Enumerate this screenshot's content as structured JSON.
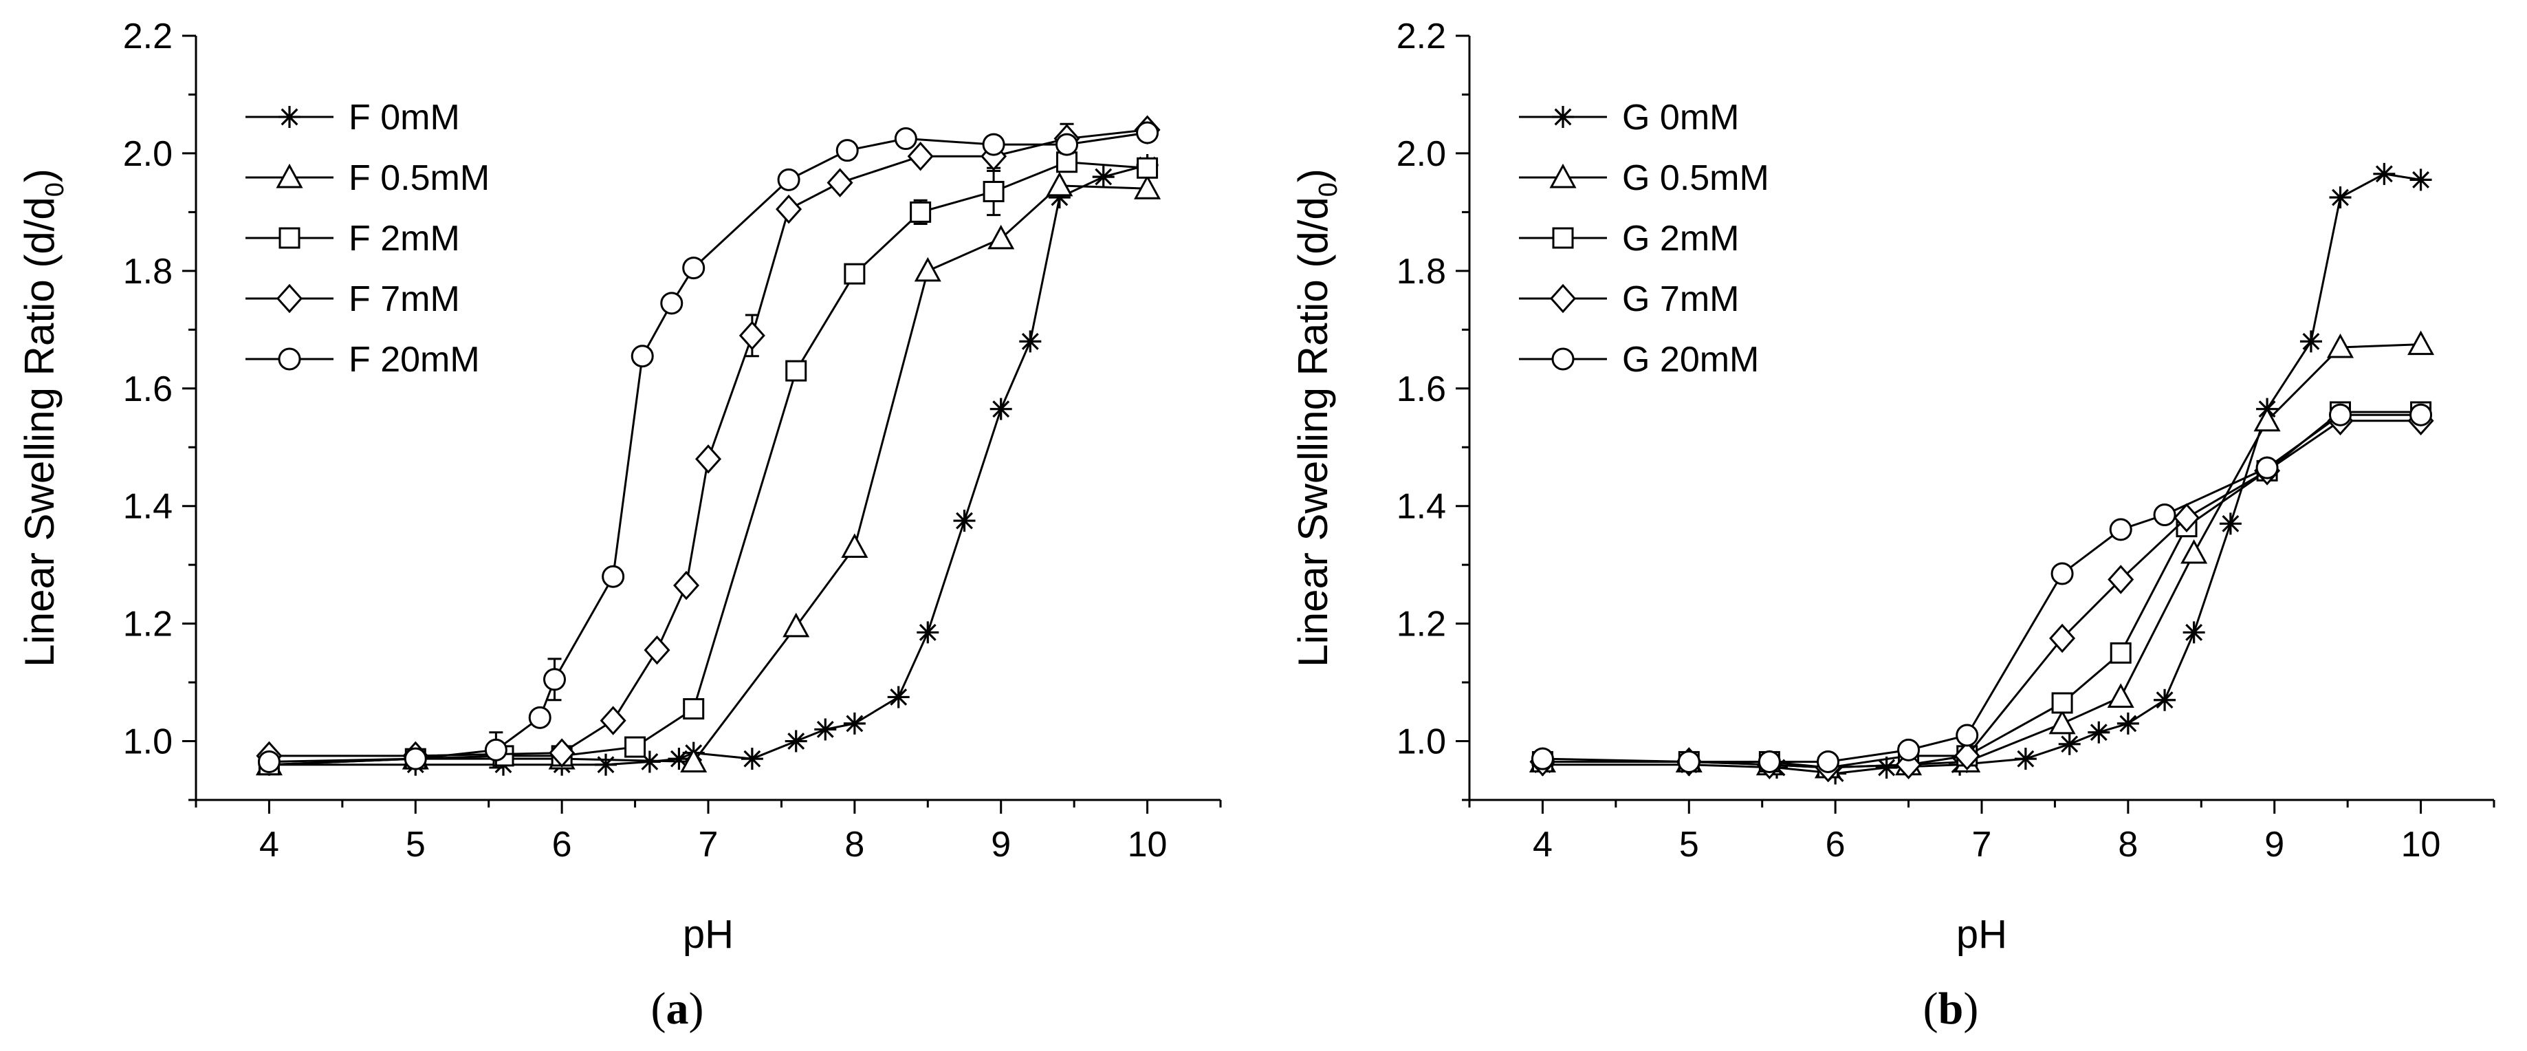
{
  "figure": {
    "colors": {
      "line": "#000000",
      "background": "#ffffff"
    }
  },
  "chart_data": [
    {
      "type": "line",
      "panel_label": "a",
      "xlabel": "pH",
      "ylabel": "Linear Swelling Ratio (d/d",
      "ylabel_sub": "0",
      "ylabel_suffix": ")",
      "xlim": [
        3.5,
        10.5
      ],
      "ylim": [
        0.9,
        2.2
      ],
      "xticks": [
        "4",
        "5",
        "6",
        "7",
        "8",
        "9",
        "10"
      ],
      "yticks": [
        "1.0",
        "1.2",
        "1.4",
        "1.6",
        "1.8",
        "2.0",
        "2.2"
      ],
      "legend_position": "top-left",
      "series": [
        {
          "name": "F 0mM",
          "marker": "star",
          "x": [
            4.0,
            5.0,
            5.6,
            6.0,
            6.3,
            6.6,
            6.8,
            6.9,
            7.3,
            7.6,
            7.8,
            8.0,
            8.3,
            8.5,
            8.75,
            9.0,
            9.2,
            9.4,
            9.7,
            10.0
          ],
          "y": [
            0.96,
            0.96,
            0.96,
            0.96,
            0.96,
            0.965,
            0.97,
            0.98,
            0.97,
            1.0,
            1.02,
            1.03,
            1.075,
            1.185,
            1.375,
            1.565,
            1.68,
            1.925,
            1.96,
            1.98
          ],
          "err": [
            0,
            0,
            0,
            0,
            0,
            0,
            0,
            0,
            0,
            0,
            0,
            0,
            0,
            0,
            0,
            0,
            0,
            0,
            0,
            0
          ]
        },
        {
          "name": "F 0.5mM",
          "marker": "triangle",
          "x": [
            4.0,
            5.0,
            6.0,
            6.9,
            7.6,
            8.0,
            8.5,
            9.0,
            9.4,
            10.0
          ],
          "y": [
            0.96,
            0.97,
            0.97,
            0.965,
            1.195,
            1.33,
            1.8,
            1.855,
            1.945,
            1.94
          ],
          "err": [
            0,
            0,
            0,
            0,
            0,
            0,
            0,
            0,
            0,
            0
          ]
        },
        {
          "name": "F 2mM",
          "marker": "square",
          "x": [
            4.0,
            5.0,
            5.6,
            6.0,
            6.5,
            6.9,
            7.6,
            8.0,
            8.45,
            8.95,
            9.45,
            10.0
          ],
          "y": [
            0.96,
            0.97,
            0.975,
            0.975,
            0.99,
            1.055,
            1.63,
            1.795,
            1.9,
            1.935,
            1.985,
            1.975
          ],
          "err": [
            0,
            0,
            0,
            0,
            0,
            0,
            0,
            0,
            0.02,
            0.04,
            0,
            0
          ]
        },
        {
          "name": "F 7mM",
          "marker": "diamond",
          "x": [
            4.0,
            5.0,
            6.0,
            6.35,
            6.65,
            6.85,
            7.0,
            7.3,
            7.55,
            7.9,
            8.45,
            8.95,
            9.45,
            10.0
          ],
          "y": [
            0.975,
            0.975,
            0.98,
            1.035,
            1.155,
            1.265,
            1.48,
            1.69,
            1.905,
            1.95,
            1.995,
            1.995,
            2.025,
            2.04
          ],
          "err": [
            0,
            0,
            0,
            0,
            0,
            0,
            0,
            0.035,
            0,
            0,
            0,
            0.025,
            0.025,
            0
          ]
        },
        {
          "name": "F 20mM",
          "marker": "circle",
          "x": [
            4.0,
            5.0,
            5.55,
            5.85,
            5.95,
            6.35,
            6.55,
            6.75,
            6.9,
            7.55,
            7.95,
            8.35,
            8.95,
            9.45,
            10.0
          ],
          "y": [
            0.965,
            0.97,
            0.985,
            1.04,
            1.105,
            1.28,
            1.655,
            1.745,
            1.805,
            1.955,
            2.005,
            2.025,
            2.015,
            2.015,
            2.035
          ],
          "err": [
            0,
            0,
            0.03,
            0,
            0.035,
            0,
            0,
            0,
            0,
            0,
            0,
            0,
            0,
            0,
            0
          ]
        }
      ]
    },
    {
      "type": "line",
      "panel_label": "b",
      "xlabel": "pH",
      "ylabel": "Linear Swelling Ratio (d/d",
      "ylabel_sub": "0",
      "ylabel_suffix": ")",
      "xlim": [
        3.5,
        10.5
      ],
      "ylim": [
        0.9,
        2.2
      ],
      "xticks": [
        "4",
        "5",
        "6",
        "7",
        "8",
        "9",
        "10"
      ],
      "yticks": [
        "1.0",
        "1.2",
        "1.4",
        "1.6",
        "1.8",
        "2.0",
        "2.2"
      ],
      "legend_position": "top-left",
      "series": [
        {
          "name": "G 0mM",
          "marker": "star",
          "x": [
            4.0,
            5.0,
            5.6,
            6.0,
            6.35,
            6.85,
            7.3,
            7.6,
            7.8,
            8.0,
            8.25,
            8.45,
            8.7,
            8.95,
            9.25,
            9.45,
            9.75,
            10.0
          ],
          "y": [
            0.96,
            0.96,
            0.955,
            0.945,
            0.955,
            0.96,
            0.97,
            0.995,
            1.015,
            1.03,
            1.07,
            1.185,
            1.37,
            1.565,
            1.68,
            1.925,
            1.965,
            1.955
          ],
          "err": [
            0,
            0,
            0,
            0,
            0,
            0,
            0,
            0,
            0,
            0,
            0,
            0,
            0,
            0,
            0,
            0,
            0,
            0
          ]
        },
        {
          "name": "G 0.5mM",
          "marker": "triangle",
          "x": [
            4.0,
            5.0,
            5.55,
            5.95,
            6.5,
            6.9,
            7.55,
            7.95,
            8.45,
            8.95,
            9.45,
            10.0
          ],
          "y": [
            0.965,
            0.965,
            0.96,
            0.955,
            0.96,
            0.965,
            1.03,
            1.075,
            1.32,
            1.545,
            1.67,
            1.675
          ],
          "err": [
            0,
            0,
            0,
            0,
            0,
            0,
            0,
            0,
            0,
            0,
            0,
            0
          ]
        },
        {
          "name": "G 2mM",
          "marker": "square",
          "x": [
            4.0,
            5.0,
            5.55,
            5.95,
            6.5,
            6.9,
            7.55,
            7.95,
            8.4,
            8.95,
            9.45,
            10.0
          ],
          "y": [
            0.965,
            0.965,
            0.965,
            0.955,
            0.975,
            0.975,
            1.065,
            1.15,
            1.365,
            1.46,
            1.56,
            1.56
          ],
          "err": [
            0,
            0,
            0,
            0,
            0,
            0,
            0,
            0,
            0,
            0,
            0,
            0
          ]
        },
        {
          "name": "G 7mM",
          "marker": "diamond",
          "x": [
            4.0,
            5.0,
            5.55,
            5.95,
            6.5,
            6.9,
            7.55,
            7.95,
            8.4,
            8.95,
            9.45,
            10.0
          ],
          "y": [
            0.965,
            0.965,
            0.96,
            0.955,
            0.96,
            0.975,
            1.175,
            1.275,
            1.38,
            1.46,
            1.545,
            1.545
          ],
          "err": [
            0,
            0,
            0,
            0,
            0,
            0,
            0,
            0,
            0,
            0,
            0,
            0
          ]
        },
        {
          "name": "G 20mM",
          "marker": "circle",
          "x": [
            4.0,
            5.0,
            5.55,
            5.95,
            6.5,
            6.9,
            7.55,
            7.95,
            8.25,
            8.95,
            9.45,
            10.0
          ],
          "y": [
            0.97,
            0.965,
            0.965,
            0.965,
            0.985,
            1.01,
            1.285,
            1.36,
            1.385,
            1.465,
            1.555,
            1.555
          ],
          "err": [
            0,
            0,
            0,
            0,
            0,
            0,
            0,
            0,
            0,
            0,
            0,
            0
          ]
        }
      ]
    }
  ]
}
